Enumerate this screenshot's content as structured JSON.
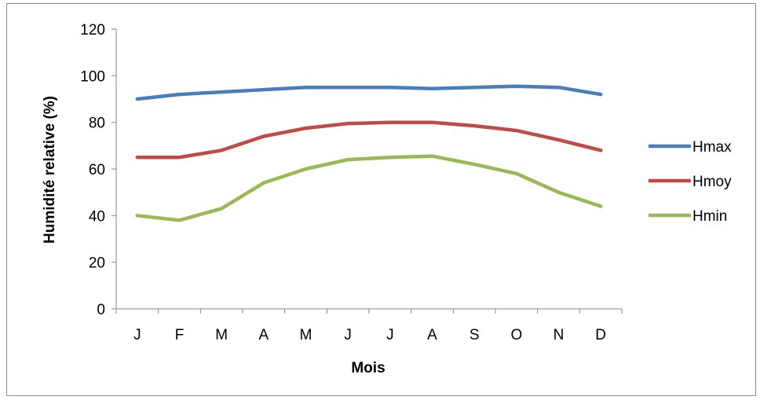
{
  "chart_data": {
    "type": "line",
    "title": "",
    "xlabel": "Mois",
    "ylabel": "Humidité relative (%)",
    "ylim": [
      0,
      120
    ],
    "yticks": [
      0,
      20,
      40,
      60,
      80,
      100,
      120
    ],
    "categories": [
      "J",
      "F",
      "M",
      "A",
      "M",
      "J",
      "J",
      "A",
      "S",
      "O",
      "N",
      "D"
    ],
    "legend_position": "right",
    "grid": false,
    "series": [
      {
        "name": "Hmax",
        "color": "#4a7ebb",
        "values": [
          90,
          92,
          93,
          94,
          95,
          95,
          95,
          94.5,
          95,
          95.5,
          95,
          92
        ]
      },
      {
        "name": "Hmoy",
        "color": "#be4b48",
        "values": [
          65,
          65,
          68,
          74,
          77.5,
          79.5,
          80,
          80,
          78.5,
          76.5,
          72.5,
          68
        ]
      },
      {
        "name": "Hmin",
        "color": "#98b954",
        "values": [
          40,
          38,
          43,
          54,
          60,
          64,
          65,
          65.5,
          62,
          58,
          50,
          44
        ]
      }
    ]
  }
}
